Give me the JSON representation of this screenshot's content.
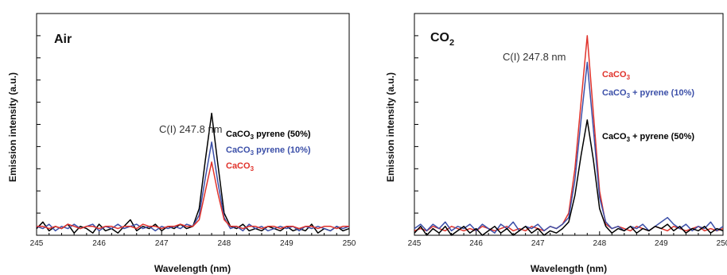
{
  "chart_data": [
    {
      "type": "line",
      "title": "Air",
      "title_sub": "",
      "title_main": "Air",
      "xlabel": "Wavelength (nm)",
      "ylabel": "Emission intensity (a.u.)",
      "xlim": [
        245,
        250
      ],
      "ylim": [
        0,
        1
      ],
      "x_ticks": [
        "245",
        "246",
        "247",
        "248",
        "249",
        "250"
      ],
      "annotation": "C(I) 247.8 nm",
      "series": [
        {
          "name": "CaCO3 pyrene (50%)",
          "name_main": "CaCO",
          "name_sub": "3",
          "name_rest": " pyrene (50%)",
          "color": "#000000",
          "x": [
            245.0,
            245.1,
            245.2,
            245.3,
            245.4,
            245.5,
            245.6,
            245.7,
            245.8,
            245.9,
            246.0,
            246.1,
            246.2,
            246.3,
            246.4,
            246.5,
            246.6,
            246.7,
            246.8,
            246.9,
            247.0,
            247.1,
            247.2,
            247.3,
            247.4,
            247.5,
            247.6,
            247.7,
            247.8,
            247.9,
            248.0,
            248.1,
            248.2,
            248.3,
            248.4,
            248.5,
            248.6,
            248.7,
            248.8,
            248.9,
            249.0,
            249.1,
            249.2,
            249.3,
            249.4,
            249.5,
            249.6,
            249.7,
            249.8,
            249.9,
            250.0
          ],
          "y": [
            0.03,
            0.06,
            0.02,
            0.04,
            0.03,
            0.05,
            0.01,
            0.04,
            0.03,
            0.01,
            0.05,
            0.02,
            0.03,
            0.01,
            0.04,
            0.07,
            0.02,
            0.04,
            0.03,
            0.05,
            0.02,
            0.04,
            0.03,
            0.05,
            0.03,
            0.04,
            0.12,
            0.34,
            0.55,
            0.32,
            0.1,
            0.04,
            0.03,
            0.05,
            0.02,
            0.03,
            0.02,
            0.04,
            0.03,
            0.02,
            0.04,
            0.02,
            0.03,
            0.02,
            0.05,
            0.01,
            0.03,
            0.02,
            0.04,
            0.02,
            0.03
          ]
        },
        {
          "name": "CaCO3 pyrene (10%)",
          "name_main": "CaCO",
          "name_sub": "3",
          "name_rest": " pyrene (10%)",
          "color": "#3b4fa8",
          "x": [
            245.0,
            245.1,
            245.2,
            245.3,
            245.4,
            245.5,
            245.6,
            245.7,
            245.8,
            245.9,
            246.0,
            246.1,
            246.2,
            246.3,
            246.4,
            246.5,
            246.6,
            246.7,
            246.8,
            246.9,
            247.0,
            247.1,
            247.2,
            247.3,
            247.4,
            247.5,
            247.6,
            247.7,
            247.8,
            247.9,
            248.0,
            248.1,
            248.2,
            248.3,
            248.4,
            248.5,
            248.6,
            248.7,
            248.8,
            248.9,
            249.0,
            249.1,
            249.2,
            249.3,
            249.4,
            249.5,
            249.6,
            249.7,
            249.8,
            249.9,
            250.0
          ],
          "y": [
            0.04,
            0.03,
            0.05,
            0.02,
            0.04,
            0.03,
            0.05,
            0.03,
            0.04,
            0.05,
            0.02,
            0.04,
            0.03,
            0.05,
            0.03,
            0.04,
            0.05,
            0.03,
            0.04,
            0.02,
            0.04,
            0.03,
            0.04,
            0.03,
            0.05,
            0.04,
            0.09,
            0.26,
            0.42,
            0.24,
            0.08,
            0.03,
            0.04,
            0.02,
            0.05,
            0.03,
            0.04,
            0.02,
            0.03,
            0.04,
            0.03,
            0.04,
            0.02,
            0.04,
            0.03,
            0.04,
            0.03,
            0.02,
            0.04,
            0.03,
            0.04
          ]
        },
        {
          "name": "CaCO3",
          "name_main": "CaCO",
          "name_sub": "3",
          "name_rest": "",
          "color": "#e0322b",
          "x": [
            245.0,
            245.1,
            245.2,
            245.3,
            245.4,
            245.5,
            245.6,
            245.7,
            245.8,
            245.9,
            246.0,
            246.1,
            246.2,
            246.3,
            246.4,
            246.5,
            246.6,
            246.7,
            246.8,
            246.9,
            247.0,
            247.1,
            247.2,
            247.3,
            247.4,
            247.5,
            247.6,
            247.7,
            247.8,
            247.9,
            248.0,
            248.1,
            248.2,
            248.3,
            248.4,
            248.5,
            248.6,
            248.7,
            248.8,
            248.9,
            249.0,
            249.1,
            249.2,
            249.3,
            249.4,
            249.5,
            249.6,
            249.7,
            249.8,
            249.9,
            250.0
          ],
          "y": [
            0.04,
            0.04,
            0.03,
            0.04,
            0.03,
            0.05,
            0.04,
            0.03,
            0.04,
            0.04,
            0.03,
            0.04,
            0.04,
            0.03,
            0.04,
            0.04,
            0.03,
            0.05,
            0.04,
            0.04,
            0.03,
            0.04,
            0.04,
            0.05,
            0.04,
            0.04,
            0.07,
            0.2,
            0.33,
            0.19,
            0.07,
            0.04,
            0.04,
            0.03,
            0.04,
            0.04,
            0.03,
            0.04,
            0.04,
            0.03,
            0.04,
            0.04,
            0.03,
            0.04,
            0.04,
            0.03,
            0.04,
            0.04,
            0.03,
            0.04,
            0.04
          ]
        }
      ]
    },
    {
      "type": "line",
      "title": "CO2",
      "title_main": "CO",
      "title_sub": "2",
      "xlabel": "Wavelength (nm)",
      "ylabel": "Emission intensity (a.u.)",
      "xlim": [
        245,
        250
      ],
      "ylim": [
        0,
        1
      ],
      "x_ticks": [
        "245",
        "246",
        "247",
        "248",
        "249",
        "250"
      ],
      "annotation": "C(I) 247.8 nm",
      "series": [
        {
          "name": "CaCO3",
          "name_main": "CaCO",
          "name_sub": "3",
          "name_rest": "",
          "color": "#e0322b",
          "x": [
            245.0,
            245.1,
            245.2,
            245.3,
            245.4,
            245.5,
            245.6,
            245.7,
            245.8,
            245.9,
            246.0,
            246.1,
            246.2,
            246.3,
            246.4,
            246.5,
            246.6,
            246.7,
            246.8,
            246.9,
            247.0,
            247.1,
            247.2,
            247.3,
            247.4,
            247.5,
            247.6,
            247.7,
            247.8,
            247.9,
            248.0,
            248.1,
            248.2,
            248.3,
            248.4,
            248.5,
            248.6,
            248.7,
            248.8,
            248.9,
            249.0,
            249.1,
            249.2,
            249.3,
            249.4,
            249.5,
            249.6,
            249.7,
            249.8,
            249.9,
            250.0
          ],
          "y": [
            0.02,
            0.03,
            0.02,
            0.04,
            0.03,
            0.02,
            0.04,
            0.03,
            0.02,
            0.03,
            0.02,
            0.04,
            0.03,
            0.02,
            0.03,
            0.04,
            0.02,
            0.03,
            0.02,
            0.04,
            0.03,
            0.02,
            0.04,
            0.03,
            0.05,
            0.1,
            0.3,
            0.6,
            0.9,
            0.55,
            0.2,
            0.05,
            0.03,
            0.04,
            0.03,
            0.02,
            0.04,
            0.03,
            0.02,
            0.04,
            0.03,
            0.02,
            0.04,
            0.03,
            0.02,
            0.03,
            0.04,
            0.02,
            0.03,
            0.02,
            0.03
          ]
        },
        {
          "name": "CaCO3 + pyrene (10%)",
          "name_main": "CaCO",
          "name_sub": "3",
          "name_rest": " + pyrene (10%)",
          "color": "#3b4fa8",
          "x": [
            245.0,
            245.1,
            245.2,
            245.3,
            245.4,
            245.5,
            245.6,
            245.7,
            245.8,
            245.9,
            246.0,
            246.1,
            246.2,
            246.3,
            246.4,
            246.5,
            246.6,
            246.7,
            246.8,
            246.9,
            247.0,
            247.1,
            247.2,
            247.3,
            247.4,
            247.5,
            247.6,
            247.7,
            247.8,
            247.9,
            248.0,
            248.1,
            248.2,
            248.3,
            248.4,
            248.5,
            248.6,
            248.7,
            248.8,
            248.9,
            249.0,
            249.1,
            249.2,
            249.3,
            249.4,
            249.5,
            249.6,
            249.7,
            249.8,
            249.9,
            250.0
          ],
          "y": [
            0.03,
            0.05,
            0.02,
            0.05,
            0.03,
            0.06,
            0.02,
            0.04,
            0.03,
            0.05,
            0.02,
            0.05,
            0.03,
            0.01,
            0.05,
            0.03,
            0.06,
            0.02,
            0.04,
            0.03,
            0.05,
            0.02,
            0.04,
            0.03,
            0.05,
            0.08,
            0.25,
            0.52,
            0.78,
            0.48,
            0.17,
            0.06,
            0.03,
            0.04,
            0.02,
            0.04,
            0.03,
            0.05,
            0.02,
            0.04,
            0.06,
            0.08,
            0.05,
            0.03,
            0.05,
            0.02,
            0.04,
            0.03,
            0.06,
            0.02,
            0.04
          ]
        },
        {
          "name": "CaCO3 + pyrene (50%)",
          "name_main": "CaCO",
          "name_sub": "3",
          "name_rest": " + pyrene (50%)",
          "color": "#000000",
          "x": [
            245.0,
            245.1,
            245.2,
            245.3,
            245.4,
            245.5,
            245.6,
            245.7,
            245.8,
            245.9,
            246.0,
            246.1,
            246.2,
            246.3,
            246.4,
            246.5,
            246.6,
            246.7,
            246.8,
            246.9,
            247.0,
            247.1,
            247.2,
            247.3,
            247.4,
            247.5,
            247.6,
            247.7,
            247.8,
            247.9,
            248.0,
            248.1,
            248.2,
            248.3,
            248.4,
            248.5,
            248.6,
            248.7,
            248.8,
            248.9,
            249.0,
            249.1,
            249.2,
            249.3,
            249.4,
            249.5,
            249.6,
            249.7,
            249.8,
            249.9,
            250.0
          ],
          "y": [
            0.01,
            0.04,
            0.0,
            0.03,
            0.01,
            0.04,
            0.0,
            0.02,
            0.04,
            0.01,
            0.03,
            0.0,
            0.02,
            0.04,
            0.01,
            0.03,
            0.0,
            0.02,
            0.04,
            0.01,
            0.03,
            0.0,
            0.02,
            0.01,
            0.03,
            0.06,
            0.18,
            0.36,
            0.52,
            0.34,
            0.12,
            0.04,
            0.01,
            0.03,
            0.02,
            0.04,
            0.01,
            0.03,
            0.02,
            0.04,
            0.03,
            0.05,
            0.02,
            0.04,
            0.01,
            0.03,
            0.02,
            0.04,
            0.01,
            0.03,
            0.02
          ]
        }
      ]
    }
  ]
}
